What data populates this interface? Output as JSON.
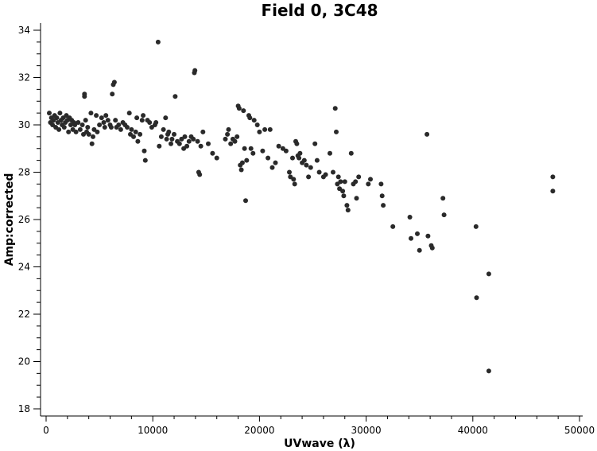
{
  "colors": {
    "point": "#2a2a2a",
    "axis": "#000000",
    "background": "#ffffff"
  },
  "chart_data": {
    "type": "scatter",
    "title": "Field 0, 3C48",
    "xlabel": "UVwave (λ)",
    "ylabel": "Amp:corrected",
    "xlim": [
      0,
      50000
    ],
    "ylim": [
      18,
      34
    ],
    "xticks": [
      0,
      10000,
      20000,
      30000,
      40000,
      50000
    ],
    "yticks": [
      18,
      20,
      22,
      24,
      26,
      28,
      30,
      32,
      34
    ],
    "grid": false,
    "series": [
      {
        "points": [
          [
            300,
            30.5
          ],
          [
            400,
            30.1
          ],
          [
            500,
            30.3
          ],
          [
            600,
            30.0
          ],
          [
            700,
            30.2
          ],
          [
            800,
            30.4
          ],
          [
            900,
            29.9
          ],
          [
            1000,
            30.3
          ],
          [
            1100,
            30.1
          ],
          [
            1200,
            29.8
          ],
          [
            1300,
            30.5
          ],
          [
            1400,
            30.2
          ],
          [
            1500,
            30.0
          ],
          [
            1600,
            30.3
          ],
          [
            1700,
            29.9
          ],
          [
            1800,
            30.1
          ],
          [
            1900,
            30.4
          ],
          [
            2000,
            30.2
          ],
          [
            2100,
            29.7
          ],
          [
            2200,
            30.3
          ],
          [
            2300,
            30.0
          ],
          [
            2400,
            30.2
          ],
          [
            2500,
            29.8
          ],
          [
            2600,
            30.1
          ],
          [
            2700,
            30.0
          ],
          [
            2800,
            29.7
          ],
          [
            3000,
            30.1
          ],
          [
            3200,
            29.8
          ],
          [
            3400,
            30.0
          ],
          [
            3500,
            29.6
          ],
          [
            3600,
            31.2
          ],
          [
            3600,
            31.3
          ],
          [
            3700,
            30.2
          ],
          [
            3800,
            29.7
          ],
          [
            3900,
            29.9
          ],
          [
            4000,
            29.6
          ],
          [
            4200,
            30.5
          ],
          [
            4300,
            29.2
          ],
          [
            4400,
            29.5
          ],
          [
            4500,
            29.8
          ],
          [
            4700,
            30.4
          ],
          [
            4800,
            29.7
          ],
          [
            5000,
            30.0
          ],
          [
            5200,
            30.3
          ],
          [
            5400,
            30.1
          ],
          [
            5500,
            29.9
          ],
          [
            5600,
            30.4
          ],
          [
            5800,
            30.2
          ],
          [
            6000,
            30.0
          ],
          [
            6100,
            29.9
          ],
          [
            6200,
            31.3
          ],
          [
            6300,
            31.7
          ],
          [
            6400,
            31.8
          ],
          [
            6500,
            30.2
          ],
          [
            6600,
            29.9
          ],
          [
            6800,
            30.0
          ],
          [
            7000,
            29.8
          ],
          [
            7200,
            30.1
          ],
          [
            7400,
            30.0
          ],
          [
            7600,
            29.9
          ],
          [
            7800,
            30.5
          ],
          [
            7900,
            29.6
          ],
          [
            8000,
            29.8
          ],
          [
            8200,
            29.5
          ],
          [
            8400,
            29.7
          ],
          [
            8500,
            30.3
          ],
          [
            8600,
            29.3
          ],
          [
            8800,
            29.6
          ],
          [
            9000,
            30.2
          ],
          [
            9100,
            30.4
          ],
          [
            9200,
            28.9
          ],
          [
            9300,
            28.5
          ],
          [
            9500,
            30.2
          ],
          [
            9700,
            30.1
          ],
          [
            9900,
            29.9
          ],
          [
            10200,
            30.0
          ],
          [
            10300,
            30.1
          ],
          [
            10500,
            33.5
          ],
          [
            10600,
            29.1
          ],
          [
            10800,
            29.5
          ],
          [
            11000,
            29.8
          ],
          [
            11200,
            30.3
          ],
          [
            11300,
            29.4
          ],
          [
            11400,
            29.6
          ],
          [
            11500,
            29.7
          ],
          [
            11700,
            29.2
          ],
          [
            11800,
            29.4
          ],
          [
            12000,
            29.6
          ],
          [
            12100,
            31.2
          ],
          [
            12300,
            29.3
          ],
          [
            12500,
            29.2
          ],
          [
            12700,
            29.4
          ],
          [
            12900,
            29.0
          ],
          [
            13000,
            29.5
          ],
          [
            13200,
            29.1
          ],
          [
            13400,
            29.3
          ],
          [
            13600,
            29.5
          ],
          [
            13800,
            29.4
          ],
          [
            13900,
            32.2
          ],
          [
            13950,
            32.3
          ],
          [
            14200,
            29.3
          ],
          [
            14300,
            28.0
          ],
          [
            14400,
            27.9
          ],
          [
            14500,
            29.1
          ],
          [
            14700,
            29.7
          ],
          [
            15200,
            29.2
          ],
          [
            15600,
            28.8
          ],
          [
            16000,
            28.6
          ],
          [
            16800,
            29.4
          ],
          [
            17000,
            29.6
          ],
          [
            17100,
            29.8
          ],
          [
            17300,
            29.2
          ],
          [
            17500,
            29.4
          ],
          [
            17700,
            29.3
          ],
          [
            17900,
            29.5
          ],
          [
            18000,
            30.8
          ],
          [
            18100,
            30.7
          ],
          [
            18200,
            28.3
          ],
          [
            18300,
            28.1
          ],
          [
            18400,
            28.4
          ],
          [
            18500,
            30.6
          ],
          [
            18600,
            29.0
          ],
          [
            18700,
            26.8
          ],
          [
            18800,
            28.5
          ],
          [
            19000,
            30.4
          ],
          [
            19100,
            30.3
          ],
          [
            19200,
            29.0
          ],
          [
            19400,
            28.8
          ],
          [
            19500,
            30.2
          ],
          [
            19800,
            30.0
          ],
          [
            20000,
            29.7
          ],
          [
            20300,
            28.9
          ],
          [
            20500,
            29.8
          ],
          [
            20800,
            28.6
          ],
          [
            21000,
            29.8
          ],
          [
            21200,
            28.2
          ],
          [
            21500,
            28.4
          ],
          [
            21800,
            29.1
          ],
          [
            22200,
            29.0
          ],
          [
            22500,
            28.9
          ],
          [
            22800,
            28.0
          ],
          [
            22900,
            27.8
          ],
          [
            23100,
            28.6
          ],
          [
            23200,
            27.7
          ],
          [
            23300,
            27.5
          ],
          [
            23400,
            29.3
          ],
          [
            23500,
            29.2
          ],
          [
            23600,
            28.7
          ],
          [
            23700,
            28.6
          ],
          [
            23800,
            28.8
          ],
          [
            24000,
            28.4
          ],
          [
            24200,
            28.5
          ],
          [
            24400,
            28.3
          ],
          [
            24600,
            27.8
          ],
          [
            24800,
            28.2
          ],
          [
            25200,
            29.2
          ],
          [
            25400,
            28.5
          ],
          [
            25600,
            28.0
          ],
          [
            26000,
            27.8
          ],
          [
            26200,
            27.9
          ],
          [
            26600,
            28.8
          ],
          [
            26900,
            28.0
          ],
          [
            27100,
            30.7
          ],
          [
            27200,
            29.7
          ],
          [
            27300,
            27.5
          ],
          [
            27400,
            27.8
          ],
          [
            27500,
            27.3
          ],
          [
            27600,
            27.6
          ],
          [
            27800,
            27.2
          ],
          [
            27900,
            27.0
          ],
          [
            28000,
            27.6
          ],
          [
            28200,
            26.6
          ],
          [
            28300,
            26.4
          ],
          [
            28600,
            28.8
          ],
          [
            28800,
            27.5
          ],
          [
            29000,
            27.6
          ],
          [
            29100,
            26.9
          ],
          [
            29300,
            27.8
          ],
          [
            30200,
            27.5
          ],
          [
            30400,
            27.7
          ],
          [
            31400,
            27.5
          ],
          [
            31500,
            27.0
          ],
          [
            31600,
            26.6
          ],
          [
            32500,
            25.7
          ],
          [
            34100,
            26.1
          ],
          [
            34200,
            25.2
          ],
          [
            34800,
            25.4
          ],
          [
            35000,
            24.7
          ],
          [
            35700,
            29.6
          ],
          [
            35800,
            25.3
          ],
          [
            36100,
            24.9
          ],
          [
            36200,
            24.8
          ],
          [
            37200,
            26.9
          ],
          [
            37300,
            26.2
          ],
          [
            40300,
            25.7
          ],
          [
            40350,
            22.7
          ],
          [
            41500,
            23.7
          ],
          [
            41500,
            19.6
          ],
          [
            47500,
            27.8
          ],
          [
            47500,
            27.2
          ]
        ]
      }
    ]
  }
}
